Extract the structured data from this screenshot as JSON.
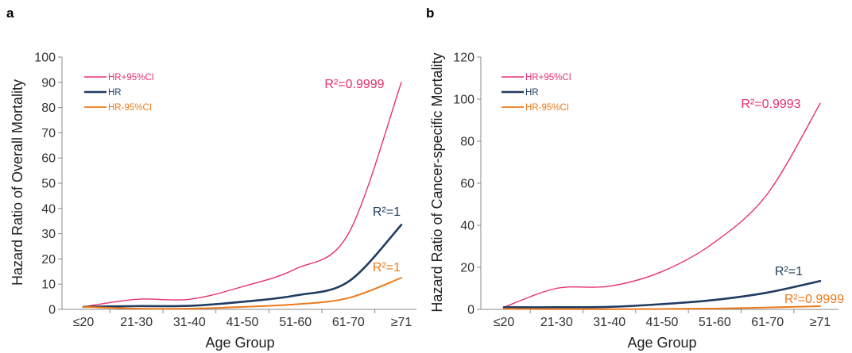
{
  "chart_data": [
    {
      "panel_label": "a",
      "type": "line",
      "xlabel": "Age Group",
      "ylabel": "Hazard Ratio of Overall Mortality",
      "categories": [
        "≤20",
        "21-30",
        "31-40",
        "41-50",
        "51-60",
        "61-70",
        "≥71"
      ],
      "ylim": [
        0,
        100
      ],
      "yticks": [
        "0",
        "10",
        "20",
        "30",
        "40",
        "50",
        "60",
        "70",
        "80",
        "90",
        "100"
      ],
      "legend_position": "top-left",
      "series": [
        {
          "name": "HR+95%CI",
          "color": "#e8306a",
          "values": [
            1,
            4,
            4,
            9,
            16,
            30,
            90
          ],
          "r2": "R²=0.9999"
        },
        {
          "name": "HR",
          "color": "#1f3b5f",
          "values": [
            1,
            1.3,
            1.4,
            3,
            5.5,
            11,
            33.5
          ],
          "r2": "R²=1"
        },
        {
          "name": "HR-95%CI",
          "color": "#ec7a1c",
          "values": [
            1,
            0.3,
            0.3,
            1,
            2,
            4.5,
            12.5
          ],
          "r2": "R²=1"
        }
      ]
    },
    {
      "panel_label": "b",
      "type": "line",
      "xlabel": "Age Group",
      "ylabel": "Hazard Ratio of Cancer-specific Mortality",
      "categories": [
        "≤20",
        "21-30",
        "31-40",
        "41-50",
        "51-60",
        "61-70",
        "≥71"
      ],
      "ylim": [
        0,
        120
      ],
      "yticks": [
        "0",
        "20",
        "40",
        "60",
        "80",
        "100",
        "120"
      ],
      "legend_position": "top-left",
      "series": [
        {
          "name": "HR+95%CI",
          "color": "#e8306a",
          "values": [
            1,
            10,
            11,
            18,
            32,
            55,
            98
          ],
          "r2": "R²=0.9993"
        },
        {
          "name": "HR",
          "color": "#1f3b5f",
          "values": [
            1,
            1,
            1.2,
            2.5,
            4.5,
            8,
            13.5
          ],
          "r2": "R²=1"
        },
        {
          "name": "HR-95%CI",
          "color": "#ec7a1c",
          "values": [
            0.3,
            0.1,
            0.1,
            0.2,
            0.4,
            0.9,
            1.5
          ],
          "r2": "R²=0.9999"
        }
      ]
    }
  ]
}
